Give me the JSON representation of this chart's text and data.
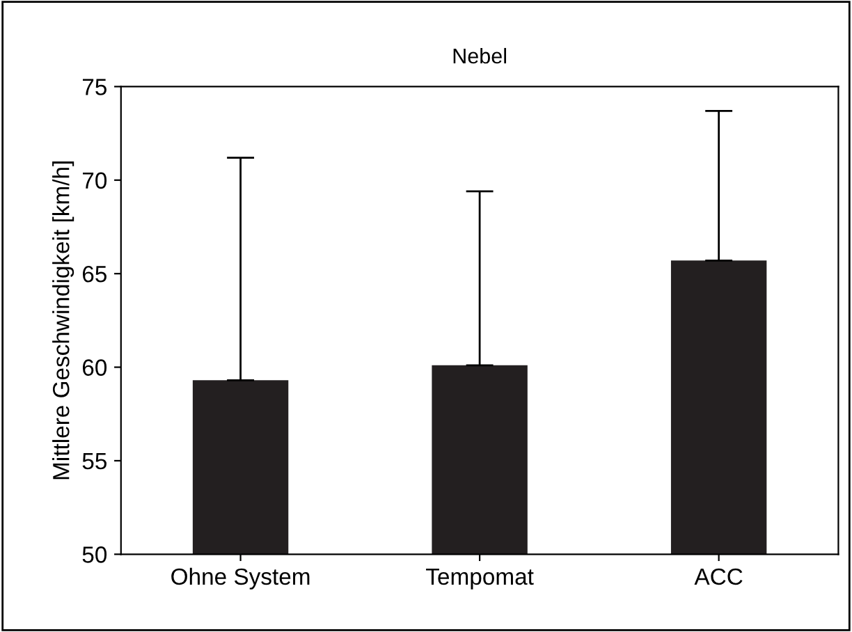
{
  "chart_data": {
    "type": "bar",
    "title": "Nebel",
    "ylabel": "Mittlere Geschwindigkeit [km/h]",
    "categories": [
      "Ohne System",
      "Tempomat",
      "ACC"
    ],
    "values": [
      59.3,
      60.1,
      65.7
    ],
    "errors": [
      [
        59.3,
        71.2
      ],
      [
        60.1,
        69.4
      ],
      [
        65.7,
        73.7
      ]
    ],
    "color": "#231f20",
    "ylim": [
      50,
      75
    ],
    "yticks": [
      50,
      55,
      60,
      65,
      70,
      75
    ],
    "grid": false,
    "legend": false
  }
}
